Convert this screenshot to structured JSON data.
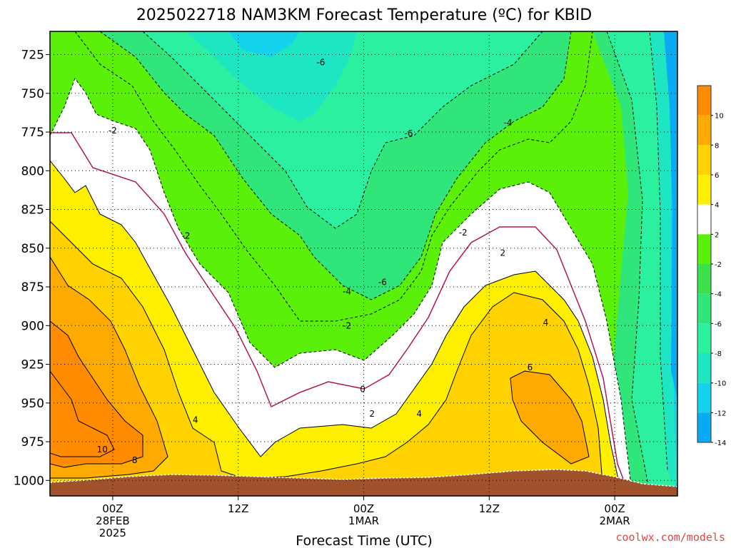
{
  "title": "2025022718 NAM3KM Forecast Temperature (ºC) for KBID",
  "credit": "coolwx.com/models",
  "chart_data": {
    "type": "contour",
    "title": "2025022718 NAM3KM Forecast Temperature (ºC) for KBID",
    "xlabel": "Forecast Time (UTC)",
    "ylabel": "",
    "xlim_hours_from_00Z_28FEB": [
      -6,
      54
    ],
    "ylim_hPa": [
      1010,
      710
    ],
    "y_scale": "pressure (inverted)",
    "grid": true,
    "x_ticks": [
      {
        "hour": 0,
        "lines": [
          "00Z",
          "28FEB",
          "2025"
        ]
      },
      {
        "hour": 12,
        "lines": [
          "12Z"
        ]
      },
      {
        "hour": 24,
        "lines": [
          "00Z",
          "1MAR"
        ]
      },
      {
        "hour": 36,
        "lines": [
          "12Z"
        ]
      },
      {
        "hour": 48,
        "lines": [
          "00Z",
          "2MAR"
        ]
      }
    ],
    "y_ticks": [
      725,
      750,
      775,
      800,
      825,
      850,
      875,
      900,
      925,
      950,
      975,
      1000
    ],
    "colorbar": {
      "ticks": [
        -14,
        -12,
        -10,
        -8,
        -6,
        -4,
        -2,
        2,
        4,
        6,
        8,
        10
      ],
      "colors": [
        "#0aaaf5",
        "#14d2eb",
        "#1ee6c3",
        "#2af0a0",
        "#30e67a",
        "#3ce04a",
        "#5af00a",
        "#ffffff",
        "#fff000",
        "#ffd200",
        "#ffaa00",
        "#ff8c00"
      ],
      "terrain_color": "#a0522d"
    },
    "contour_labels": [
      {
        "value": "-6",
        "hour": 19.9,
        "hPa": 730
      },
      {
        "value": "-2",
        "hour": 0,
        "hPa": 774
      },
      {
        "value": "-6",
        "hour": 28.3,
        "hPa": 776
      },
      {
        "value": "-4",
        "hour": 37.8,
        "hPa": 769
      },
      {
        "value": "-2",
        "hour": 7.0,
        "hPa": 842
      },
      {
        "value": "-2",
        "hour": 33.5,
        "hPa": 840
      },
      {
        "value": "-6",
        "hour": 25.8,
        "hPa": 872
      },
      {
        "value": "-4",
        "hour": 22.4,
        "hPa": 878
      },
      {
        "value": "-2",
        "hour": 22.4,
        "hPa": 900
      },
      {
        "value": "2",
        "hour": 37.3,
        "hPa": 853
      },
      {
        "value": "4",
        "hour": 41.4,
        "hPa": 898
      },
      {
        "value": "0",
        "hour": 23.9,
        "hPa": 941
      },
      {
        "value": "6",
        "hour": 39.9,
        "hPa": 927
      },
      {
        "value": "4",
        "hour": 7.9,
        "hPa": 961
      },
      {
        "value": "2",
        "hour": 24.8,
        "hPa": 957
      },
      {
        "value": "4",
        "hour": 29.3,
        "hPa": 957
      },
      {
        "value": "10",
        "hour": -1.0,
        "hPa": 980
      },
      {
        "value": "8",
        "hour": 2.1,
        "hPa": 987
      }
    ]
  }
}
